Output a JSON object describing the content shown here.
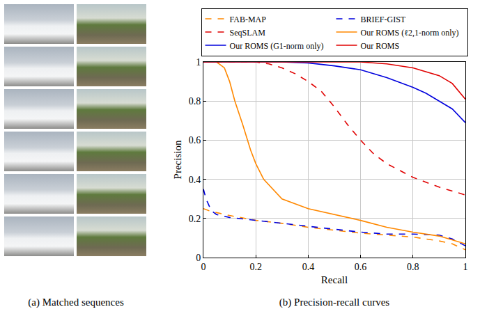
{
  "panel_a": {
    "caption": "(a) Matched sequences"
  },
  "chart_data": {
    "type": "line",
    "caption": "(b) Precision-recall curves",
    "x_label": "Recall",
    "y_label": "Precision",
    "xlim": [
      0,
      1
    ],
    "ylim": [
      0,
      1
    ],
    "xticks": [
      0,
      0.2,
      0.4,
      0.6,
      0.8,
      1
    ],
    "yticks": [
      0,
      0.2,
      0.4,
      0.6,
      0.8,
      1
    ],
    "grid": true,
    "legend": "top",
    "series": [
      {
        "name": "FAB-MAP",
        "color": "#ff8800",
        "line_style": "dash",
        "x": [
          0,
          0.02,
          0.05,
          0.1,
          0.2,
          0.3,
          0.4,
          0.5,
          0.6,
          0.7,
          0.8,
          0.9,
          0.95,
          1
        ],
        "values": [
          0.25,
          0.24,
          0.23,
          0.215,
          0.19,
          0.175,
          0.155,
          0.14,
          0.125,
          0.115,
          0.105,
          0.085,
          0.07,
          0.04
        ]
      },
      {
        "name": "BRIEF-GIST",
        "color": "#0000dd",
        "line_style": "dash",
        "x": [
          0,
          0.01,
          0.03,
          0.05,
          0.1,
          0.2,
          0.3,
          0.4,
          0.5,
          0.6,
          0.7,
          0.8,
          0.9,
          0.95,
          1
        ],
        "values": [
          0.35,
          0.3,
          0.24,
          0.22,
          0.205,
          0.19,
          0.175,
          0.16,
          0.145,
          0.13,
          0.12,
          0.12,
          0.115,
          0.095,
          0.06
        ]
      },
      {
        "name": "SeqSLAM",
        "color": "#e00000",
        "line_style": "dash",
        "x": [
          0,
          0.1,
          0.2,
          0.25,
          0.3,
          0.35,
          0.4,
          0.45,
          0.5,
          0.55,
          0.6,
          0.65,
          0.7,
          0.8,
          0.9,
          1
        ],
        "values": [
          1,
          1,
          1,
          0.99,
          0.97,
          0.94,
          0.9,
          0.85,
          0.77,
          0.68,
          0.6,
          0.53,
          0.48,
          0.41,
          0.36,
          0.32
        ]
      },
      {
        "name": "Our ROMS (ℓ2,1-norm only)",
        "color": "#ff8800",
        "line_style": "solid",
        "x": [
          0,
          0.05,
          0.08,
          0.1,
          0.12,
          0.15,
          0.18,
          0.2,
          0.23,
          0.3,
          0.4,
          0.5,
          0.6,
          0.7,
          0.8,
          0.9,
          0.95,
          1
        ],
        "values": [
          1,
          1,
          0.97,
          0.9,
          0.8,
          0.68,
          0.55,
          0.48,
          0.4,
          0.3,
          0.25,
          0.22,
          0.19,
          0.155,
          0.13,
          0.11,
          0.09,
          0.07
        ]
      },
      {
        "name": "Our ROMS (G1-norm only)",
        "color": "#0000dd",
        "line_style": "solid",
        "x": [
          0,
          0.3,
          0.4,
          0.5,
          0.6,
          0.7,
          0.8,
          0.85,
          0.9,
          0.95,
          1
        ],
        "values": [
          1,
          1,
          0.995,
          0.98,
          0.96,
          0.92,
          0.87,
          0.84,
          0.8,
          0.76,
          0.69
        ]
      },
      {
        "name": "Our ROMS",
        "color": "#e00000",
        "line_style": "solid",
        "x": [
          0,
          0.6,
          0.7,
          0.8,
          0.9,
          0.95,
          1
        ],
        "values": [
          1,
          1,
          0.99,
          0.97,
          0.93,
          0.89,
          0.81
        ]
      }
    ]
  }
}
